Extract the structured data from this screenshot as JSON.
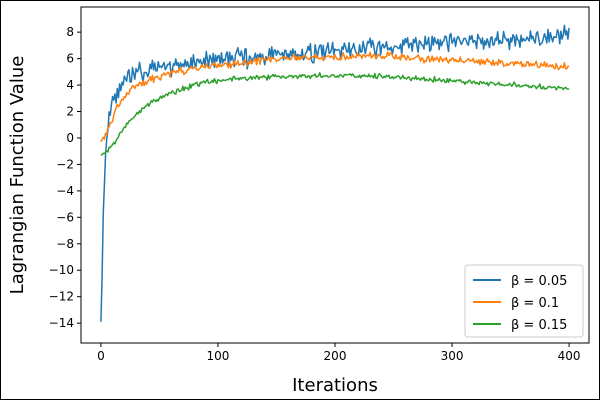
{
  "chart_data": {
    "type": "line",
    "title": "",
    "xlabel": "Iterations",
    "ylabel": "Lagrangian Function Value",
    "xlim": [
      -17,
      417
    ],
    "ylim": [
      -15.5,
      9.9
    ],
    "xticks": [
      0,
      100,
      200,
      300,
      400
    ],
    "yticks": [
      -14,
      -12,
      -10,
      -8,
      -6,
      -4,
      -2,
      0,
      2,
      4,
      6,
      8
    ],
    "grid": false,
    "legend_position": "lower-right",
    "series": [
      {
        "name": "β = 0.05",
        "color": "#1f77b4",
        "x": [
          0,
          2,
          4,
          6,
          8,
          10,
          15,
          20,
          30,
          40,
          50,
          60,
          70,
          80,
          90,
          100,
          110,
          120,
          130,
          140,
          150,
          160,
          170,
          180,
          190,
          200,
          210,
          220,
          230,
          240,
          250,
          260,
          270,
          280,
          290,
          300,
          310,
          320,
          330,
          340,
          350,
          360,
          370,
          380,
          390,
          400
        ],
        "values": [
          -13.9,
          -6.0,
          -1.0,
          1.0,
          2.2,
          3.0,
          3.6,
          4.2,
          4.8,
          5.1,
          5.3,
          5.5,
          5.6,
          5.7,
          5.8,
          5.9,
          6.0,
          6.1,
          6.1,
          6.2,
          6.3,
          6.3,
          6.4,
          6.5,
          6.5,
          6.6,
          6.7,
          6.7,
          6.8,
          6.9,
          6.9,
          7.0,
          7.1,
          7.1,
          7.2,
          7.2,
          7.3,
          7.3,
          7.4,
          7.4,
          7.5,
          7.5,
          7.6,
          7.6,
          7.7,
          7.8
        ],
        "noise": 0.9
      },
      {
        "name": "β = 0.1",
        "color": "#ff7f0e",
        "x": [
          0,
          5,
          10,
          15,
          20,
          30,
          40,
          50,
          60,
          70,
          80,
          90,
          100,
          120,
          140,
          160,
          180,
          200,
          220,
          240,
          260,
          280,
          300,
          320,
          340,
          360,
          380,
          400
        ],
        "values": [
          -0.3,
          0.4,
          1.5,
          2.5,
          3.2,
          3.9,
          4.3,
          4.6,
          4.9,
          5.1,
          5.3,
          5.4,
          5.5,
          5.7,
          5.9,
          6.0,
          6.1,
          6.15,
          6.2,
          6.2,
          6.1,
          6.0,
          5.9,
          5.8,
          5.7,
          5.6,
          5.45,
          5.35
        ],
        "noise": 0.35
      },
      {
        "name": "β = 0.15",
        "color": "#2ca02c",
        "x": [
          0,
          5,
          10,
          15,
          20,
          30,
          40,
          50,
          60,
          70,
          80,
          90,
          100,
          120,
          140,
          160,
          180,
          200,
          220,
          240,
          260,
          280,
          300,
          320,
          340,
          360,
          380,
          400
        ],
        "values": [
          -1.3,
          -1.0,
          -0.6,
          0.1,
          0.8,
          1.8,
          2.5,
          3.0,
          3.4,
          3.7,
          4.0,
          4.2,
          4.35,
          4.5,
          4.6,
          4.65,
          4.7,
          4.72,
          4.7,
          4.65,
          4.55,
          4.45,
          4.35,
          4.2,
          4.05,
          3.95,
          3.85,
          3.75
        ],
        "noise": 0.25
      }
    ]
  }
}
